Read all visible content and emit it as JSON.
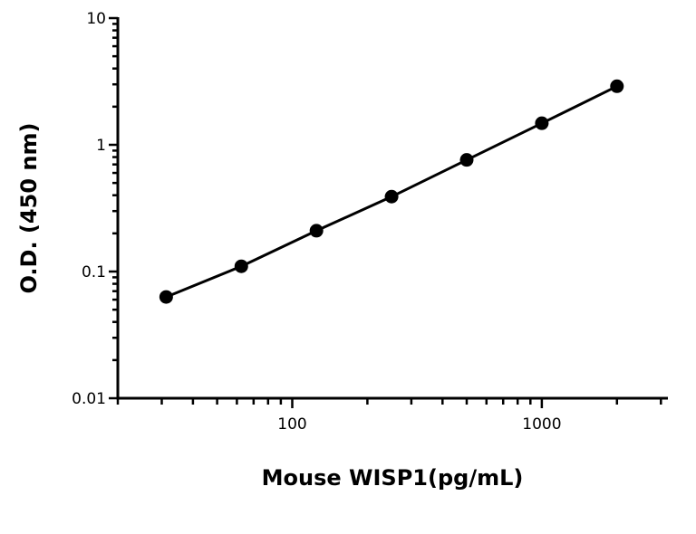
{
  "chart_data": {
    "type": "line",
    "title": "",
    "xlabel": "Mouse WISP1(pg/mL)",
    "ylabel": "O.D. (450 nm)",
    "x_scale": "log",
    "y_scale": "log",
    "xlim": [
      20,
      3200
    ],
    "ylim": [
      0.01,
      10
    ],
    "x_ticks": [
      {
        "value": 100,
        "label": "100"
      },
      {
        "value": 1000,
        "label": "1000"
      }
    ],
    "y_ticks": [
      {
        "value": 0.01,
        "label": "0.01"
      },
      {
        "value": 0.1,
        "label": "0.1"
      },
      {
        "value": 1,
        "label": "1"
      },
      {
        "value": 10,
        "label": "10"
      }
    ],
    "grid": false,
    "marker": "circle",
    "color": "#000000",
    "x": [
      31.25,
      62.5,
      125,
      250,
      500,
      1000,
      2000
    ],
    "y": [
      0.063,
      0.11,
      0.21,
      0.39,
      0.76,
      1.48,
      2.9
    ]
  }
}
